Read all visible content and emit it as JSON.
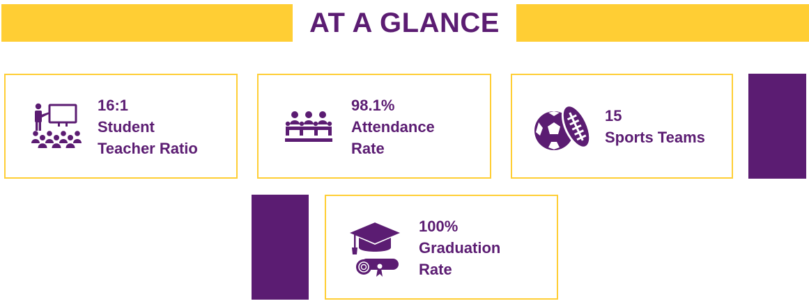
{
  "colors": {
    "gold": "#FFCE34",
    "purple": "#5B1C72"
  },
  "header": {
    "title": "AT A GLANCE"
  },
  "stats": [
    {
      "icon": "teacher-classroom-icon",
      "lines": [
        "16:1",
        "Student",
        "Teacher Ratio"
      ]
    },
    {
      "icon": "audience-seats-icon",
      "lines": [
        "98.1%",
        "Attendance",
        "Rate"
      ]
    },
    {
      "icon": "sports-balls-icon",
      "lines": [
        "15",
        "Sports Teams"
      ]
    },
    {
      "icon": "graduation-cap-diploma-icon",
      "lines": [
        "100%",
        "Graduation",
        "Rate"
      ]
    }
  ]
}
